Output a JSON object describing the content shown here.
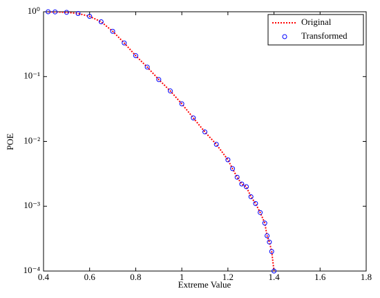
{
  "chart_data": {
    "type": "line",
    "xlabel": "Extreme Value",
    "ylabel": "POE",
    "x": [
      0.42,
      0.45,
      0.5,
      0.55,
      0.6,
      0.65,
      0.7,
      0.75,
      0.8,
      0.85,
      0.9,
      0.95,
      1.0,
      1.05,
      1.1,
      1.15,
      1.2,
      1.22,
      1.24,
      1.26,
      1.28,
      1.3,
      1.32,
      1.34,
      1.36,
      1.37,
      1.38,
      1.39,
      1.4
    ],
    "series": [
      {
        "name": "Original",
        "color": "#ff0000",
        "style": "dotted-line",
        "values": [
          1,
          0.995,
          0.98,
          0.94,
          0.85,
          0.7,
          0.5,
          0.33,
          0.21,
          0.14,
          0.09,
          0.06,
          0.038,
          0.023,
          0.014,
          0.009,
          0.0052,
          0.0038,
          0.0028,
          0.0022,
          0.002,
          0.0014,
          0.0011,
          0.0008,
          0.00055,
          0.00035,
          0.00028,
          0.0002,
          0.0001
        ]
      },
      {
        "name": "Transformed",
        "color": "#0000ff",
        "style": "circles",
        "values": [
          1,
          0.995,
          0.98,
          0.94,
          0.85,
          0.7,
          0.5,
          0.33,
          0.21,
          0.14,
          0.09,
          0.06,
          0.038,
          0.023,
          0.014,
          0.009,
          0.0052,
          0.0038,
          0.0028,
          0.0022,
          0.002,
          0.0014,
          0.0011,
          0.0008,
          0.00055,
          0.00035,
          0.00028,
          0.0002,
          0.0001
        ]
      }
    ],
    "xlim": [
      0.4,
      1.8
    ],
    "xticks": [
      0.4,
      0.6,
      0.8,
      1,
      1.2,
      1.4,
      1.6,
      1.8
    ],
    "ylim": [
      0.0001,
      1
    ],
    "ylog": true,
    "yticks": [
      {
        "value": 0.0001,
        "label": "10⁻⁴"
      },
      {
        "value": 0.001,
        "label": "10⁻³"
      },
      {
        "value": 0.01,
        "label": "10⁻²"
      },
      {
        "value": 0.1,
        "label": "10⁻¹"
      },
      {
        "value": 1,
        "label": "10⁰"
      }
    ],
    "legend": "top-right"
  }
}
